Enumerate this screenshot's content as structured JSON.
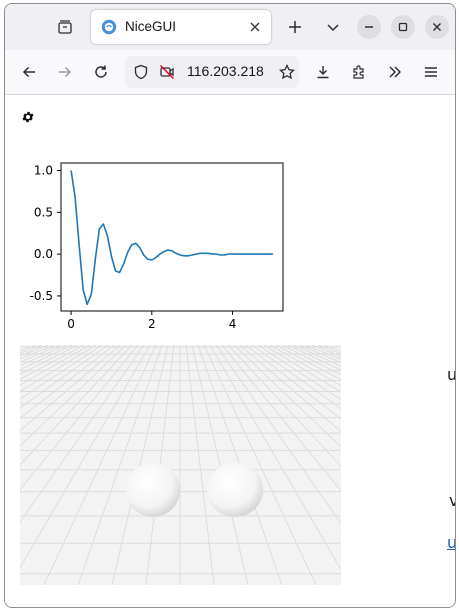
{
  "browser": {
    "tab_title": "NiceGUI",
    "url": "116.203.218",
    "icons": [
      "tab-list-icon",
      "favicon-icon",
      "close-icon",
      "plus-icon",
      "chevron-down-icon",
      "minimize-icon",
      "maximize-icon",
      "close-window-icon",
      "back-icon",
      "forward-icon",
      "reload-icon",
      "shield-icon",
      "no-camera-icon",
      "star-icon",
      "download-icon",
      "extensions-icon",
      "overflow-icon",
      "menu-icon"
    ]
  },
  "page": {
    "settings_icon": "gear-icon",
    "side_text": {
      "a": "u",
      "b": "v",
      "c": "u"
    }
  },
  "chart_data": {
    "type": "line",
    "x": [
      0.0,
      0.1,
      0.2,
      0.3,
      0.4,
      0.5,
      0.6,
      0.7,
      0.8,
      0.9,
      1.0,
      1.1,
      1.2,
      1.3,
      1.4,
      1.5,
      1.6,
      1.7,
      1.8,
      1.9,
      2.0,
      2.1,
      2.2,
      2.3,
      2.4,
      2.5,
      2.6,
      2.7,
      2.8,
      2.9,
      3.0,
      3.1,
      3.2,
      3.3,
      3.4,
      3.5,
      3.6,
      3.7,
      3.8,
      3.9,
      4.0,
      4.1,
      4.2,
      4.3,
      4.4,
      4.5,
      4.6,
      4.7,
      4.8,
      4.9,
      5.0
    ],
    "y": [
      1.0,
      0.68,
      0.1,
      -0.43,
      -0.6,
      -0.48,
      -0.06,
      0.3,
      0.36,
      0.22,
      -0.03,
      -0.2,
      -0.22,
      -0.12,
      0.02,
      0.11,
      0.13,
      0.08,
      -0.01,
      -0.06,
      -0.07,
      -0.04,
      0.0,
      0.03,
      0.05,
      0.04,
      0.01,
      -0.01,
      -0.02,
      -0.02,
      -0.01,
      0.0,
      0.01,
      0.01,
      0.01,
      0.0,
      0.0,
      -0.01,
      -0.01,
      0.0,
      0.0,
      0.0,
      0.0,
      0.0,
      0.0,
      0.0,
      0.0,
      0.0,
      0.0,
      0.0,
      0.0
    ],
    "xlim": [
      -0.25,
      5.25
    ],
    "ylim": [
      -0.68,
      1.09
    ],
    "xticks": [
      "0",
      "2",
      "4"
    ],
    "xtick_values": [
      0,
      2,
      4
    ],
    "yticks": [
      "1.0",
      "0.5",
      "0.0",
      "-0.5"
    ],
    "ytick_values": [
      1.0,
      0.5,
      0.0,
      -0.5
    ],
    "line_color": "#1f77b4",
    "grid": false
  },
  "scene": {
    "background": "#f3f3f3",
    "grid_color": "#dcdcdc",
    "sphere_count": 2
  }
}
